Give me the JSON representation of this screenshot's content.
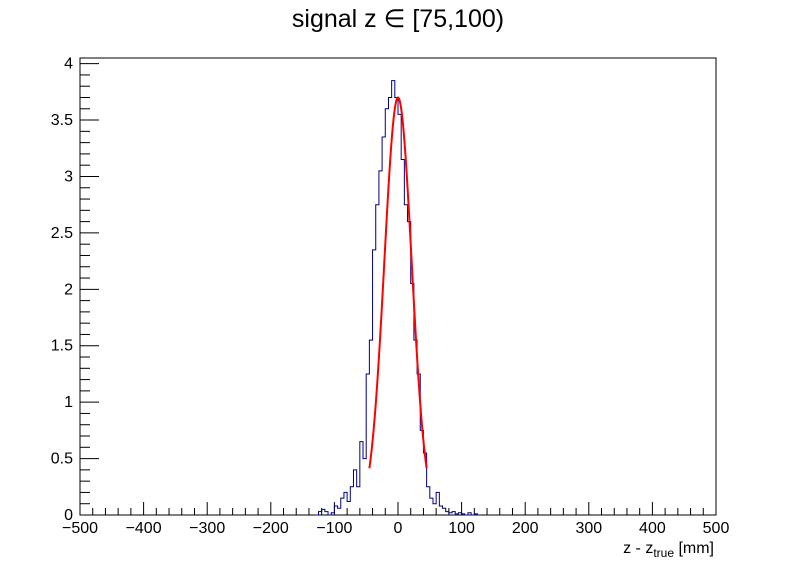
{
  "chart_data": {
    "type": "histogram",
    "title": "signal z ∈ [75,100)",
    "xlabel_main": "z - z",
    "xlabel_sub": "true",
    "xlabel_unit": " [mm]",
    "ylabel": "",
    "xlim": [
      -500,
      500
    ],
    "ylim": [
      0,
      4.05
    ],
    "x_major_ticks": [
      -500,
      -400,
      -300,
      -200,
      -100,
      0,
      100,
      200,
      300,
      400,
      500
    ],
    "x_tick_labels": [
      "−500",
      "−400",
      "−300",
      "−200",
      "−100",
      "0",
      "100",
      "200",
      "300",
      "400",
      "500"
    ],
    "y_major_ticks": [
      0,
      0.5,
      1,
      1.5,
      2,
      2.5,
      3,
      3.5,
      4
    ],
    "y_tick_labels": [
      "0",
      "0.5",
      "1",
      "1.5",
      "2",
      "2.5",
      "3",
      "3.5",
      "4"
    ],
    "grid": false,
    "legend": "none",
    "series": [
      {
        "type": "histogram",
        "color": "#000080",
        "bin_width": 5,
        "bin_edges": [
          -130,
          -125,
          -120,
          -115,
          -110,
          -105,
          -100,
          -95,
          -90,
          -85,
          -80,
          -75,
          -70,
          -65,
          -60,
          -55,
          -50,
          -45,
          -40,
          -35,
          -30,
          -25,
          -20,
          -15,
          -10,
          -5,
          0,
          5,
          10,
          15,
          20,
          25,
          30,
          35,
          40,
          45,
          50,
          55,
          60,
          65,
          70,
          75,
          80,
          85,
          90,
          95,
          100,
          105,
          110,
          115,
          120,
          125,
          130
        ],
        "values": [
          0,
          0.03,
          0.05,
          0.03,
          0,
          0.02,
          0.08,
          0.06,
          0.15,
          0.2,
          0.12,
          0.25,
          0.4,
          0.25,
          0.65,
          0.5,
          1.25,
          1.55,
          2.35,
          2.75,
          3.05,
          3.35,
          3.6,
          3.7,
          3.85,
          3.7,
          3.55,
          3.15,
          2.75,
          2.6,
          2.05,
          1.55,
          1.25,
          0.75,
          0.55,
          0.25,
          0.15,
          0.1,
          0.2,
          0.08,
          0.06,
          0.03,
          0.02,
          0.03,
          0.01,
          0.02,
          0.01,
          0,
          0.02,
          0,
          0.01,
          0
        ]
      },
      {
        "type": "fit",
        "color": "#ff0000",
        "function": "gaussian",
        "amplitude": 3.7,
        "mean": 0,
        "sigma": 21.5,
        "range": [
          -45,
          45
        ]
      }
    ]
  }
}
